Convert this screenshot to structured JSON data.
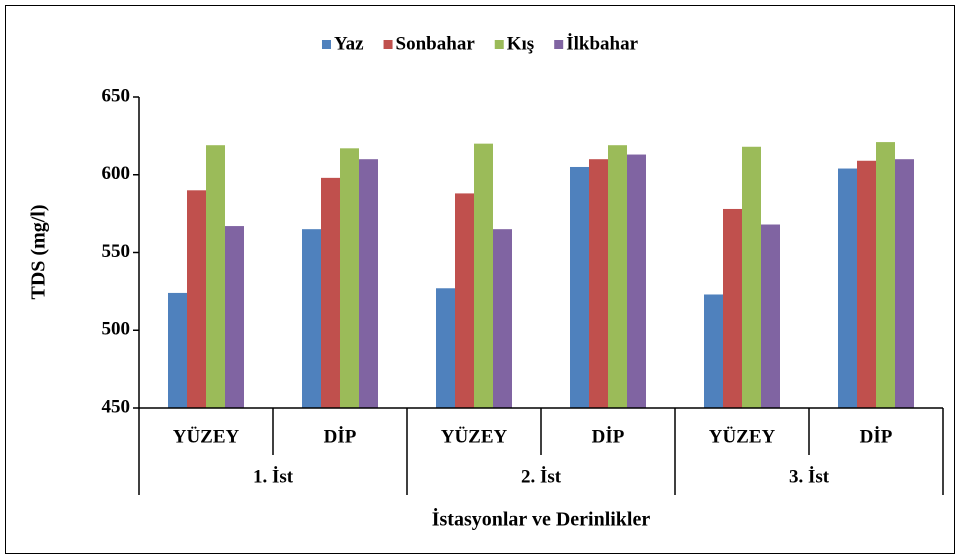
{
  "chart_data": {
    "type": "bar",
    "y_label": "TDS (mg/l)",
    "x_label": "İstasyonlar ve Derinlikler",
    "categories": [
      "YÜZEY",
      "DİP",
      "YÜZEY",
      "DİP",
      "YÜZEY",
      "DİP"
    ],
    "groups": [
      "1. İst",
      "2. İst",
      "3. İst"
    ],
    "series": [
      {
        "name": "Yaz",
        "color": "#4f81bd",
        "values": [
          524,
          565,
          527,
          605,
          523,
          604
        ]
      },
      {
        "name": "Sonbahar",
        "color": "#c0504d",
        "values": [
          590,
          598,
          588,
          610,
          578,
          609
        ]
      },
      {
        "name": "Kış",
        "color": "#9bbb59",
        "values": [
          619,
          617,
          620,
          619,
          618,
          621
        ]
      },
      {
        "name": "İlkbahar",
        "color": "#8064a2",
        "values": [
          567,
          610,
          565,
          613,
          568,
          610
        ]
      }
    ],
    "ylim": [
      450,
      650
    ],
    "yticks": [
      450,
      500,
      550,
      600,
      650
    ],
    "grid": false,
    "legend": "top"
  }
}
